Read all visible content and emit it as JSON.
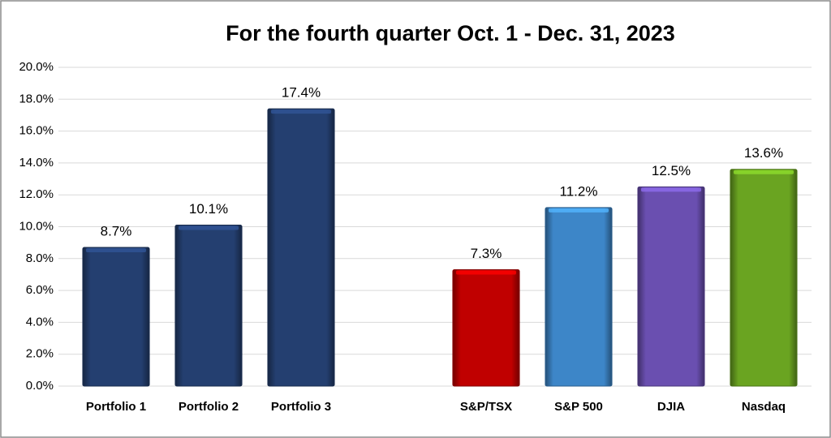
{
  "chart_data": {
    "type": "bar",
    "title": "For the fourth quarter Oct. 1 - Dec. 31, 2023",
    "categories": [
      "Portfolio 1",
      "Portfolio 2",
      "Portfolio 3",
      null,
      "S&P/TSX",
      "S&P 500",
      "DJIA",
      "Nasdaq"
    ],
    "values": [
      8.7,
      10.1,
      17.4,
      null,
      7.3,
      11.2,
      12.5,
      13.6
    ],
    "value_labels": [
      "8.7%",
      "10.1%",
      "17.4%",
      null,
      "7.3%",
      "11.2%",
      "12.5%",
      "13.6%"
    ],
    "colors": [
      "#243f70",
      "#243f70",
      "#243f70",
      null,
      "#c00000",
      "#3d86c8",
      "#6a4fb0",
      "#6aa421"
    ],
    "ylim": [
      0,
      20
    ],
    "yticks": [
      {
        "value": 0,
        "label": "0.0%"
      },
      {
        "value": 2,
        "label": "2.0%"
      },
      {
        "value": 4,
        "label": "4.0%"
      },
      {
        "value": 6,
        "label": "6.0%"
      },
      {
        "value": 8,
        "label": "8.0%"
      },
      {
        "value": 10,
        "label": "10.0%"
      },
      {
        "value": 12,
        "label": "12.0%"
      },
      {
        "value": 14,
        "label": "14.0%"
      },
      {
        "value": 16,
        "label": "16.0%"
      },
      {
        "value": 18,
        "label": "18.0%"
      },
      {
        "value": 20,
        "label": "20.0%"
      }
    ],
    "grid": true
  }
}
